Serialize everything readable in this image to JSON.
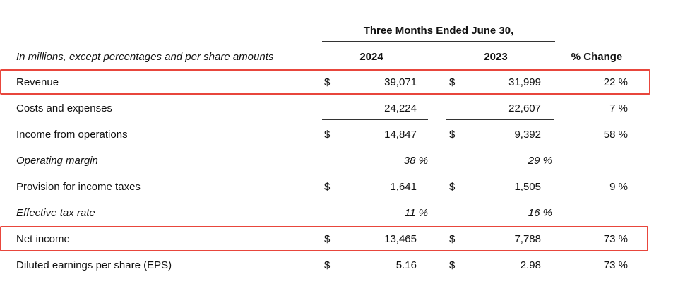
{
  "header": {
    "period": "Three Months Ended June 30,",
    "unit_note": "In millions, except percentages and per share amounts",
    "col_2024": "2024",
    "col_2023": "2023",
    "col_change": "% Change"
  },
  "rows": [
    {
      "label": "Revenue",
      "italic": false,
      "cur_a": "$",
      "v2024": "39,071",
      "cur_b": "$",
      "v2023": "31,999",
      "change": "22 %"
    },
    {
      "label": "Costs and expenses",
      "italic": false,
      "cur_a": "",
      "v2024": "24,224",
      "cur_b": "",
      "v2023": "22,607",
      "change": "7 %"
    },
    {
      "label": "Income from operations",
      "italic": false,
      "cur_a": "$",
      "v2024": "14,847",
      "cur_b": "$",
      "v2023": "9,392",
      "change": "58 %"
    },
    {
      "label": "Operating margin",
      "italic": true,
      "cur_a": "",
      "v2024": "38 %",
      "cur_b": "",
      "v2023": "29 %",
      "change": ""
    },
    {
      "label": "Provision for income taxes",
      "italic": false,
      "cur_a": "$",
      "v2024": "1,641",
      "cur_b": "$",
      "v2023": "1,505",
      "change": "9 %"
    },
    {
      "label": "Effective tax rate",
      "italic": true,
      "cur_a": "",
      "v2024": "11 %",
      "cur_b": "",
      "v2023": "16 %",
      "change": ""
    },
    {
      "label": "Net income",
      "italic": false,
      "cur_a": "$",
      "v2024": "13,465",
      "cur_b": "$",
      "v2023": "7,788",
      "change": "73 %"
    },
    {
      "label": "Diluted earnings per share (EPS)",
      "italic": false,
      "cur_a": "$",
      "v2024": "5.16",
      "cur_b": "$",
      "v2023": "2.98",
      "change": "73 %"
    }
  ],
  "highlights": [
    "Revenue",
    "Net income"
  ],
  "colors": {
    "highlight": "#e8463c",
    "text": "#111111",
    "rule": "#333333"
  }
}
